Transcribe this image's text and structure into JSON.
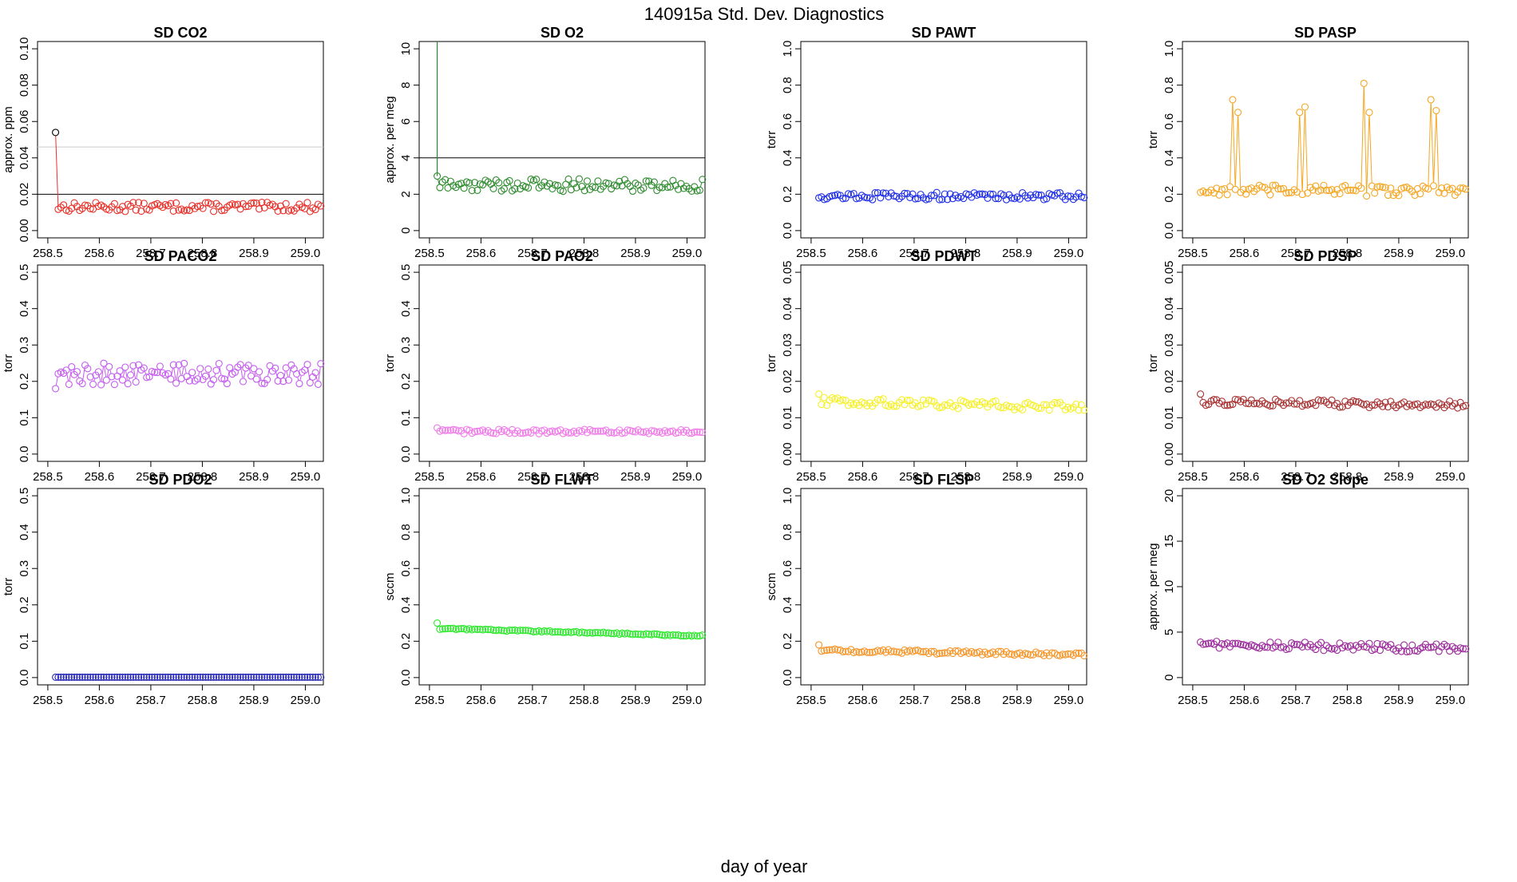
{
  "figure": {
    "title": "140915a   Std. Dev. Diagnostics",
    "xlabel": "day of year"
  },
  "chart_data": [
    {
      "type": "scatter",
      "title": "SD CO2",
      "xlabel": "",
      "ylabel": "approx. ppm",
      "color": "#e8312a",
      "xlim": [
        258.5,
        259.0
      ],
      "xticks": [
        "258.5",
        "258.6",
        "258.7",
        "258.8",
        "258.9",
        "259.0"
      ],
      "ylim": [
        0.0,
        0.1
      ],
      "yticks": [
        "0.00",
        "0.02",
        "0.04",
        "0.06",
        "0.08",
        "0.10"
      ],
      "ref_lines": [
        {
          "y": 0.02,
          "color": "#000000"
        },
        {
          "y": 0.046,
          "color": "#cccccc"
        }
      ],
      "first_point_color": "#000000",
      "series": [
        {
          "base": 0.013,
          "noise": 0.0025,
          "trend": 0.0,
          "first": 0.054
        }
      ]
    },
    {
      "type": "scatter",
      "title": "SD O2",
      "xlabel": "",
      "ylabel": "approx. per meg",
      "color": "#2e8b2e",
      "xlim": [
        258.5,
        259.0
      ],
      "xticks": [
        "258.5",
        "258.6",
        "258.7",
        "258.8",
        "258.9",
        "259.0"
      ],
      "ylim": [
        0,
        10
      ],
      "yticks": [
        "0",
        "2",
        "4",
        "6",
        "8",
        "10"
      ],
      "ref_lines": [
        {
          "y": 4,
          "color": "#000000"
        }
      ],
      "series": [
        {
          "base": 2.5,
          "noise": 0.35,
          "trend": 0.0,
          "first": 3.0,
          "spike_to_top": true
        }
      ]
    },
    {
      "type": "scatter",
      "title": "SD PAWT",
      "xlabel": "",
      "ylabel": "torr",
      "color": "#1f2ee8",
      "xlim": [
        258.5,
        259.0
      ],
      "xticks": [
        "258.5",
        "258.6",
        "258.7",
        "258.8",
        "258.9",
        "259.0"
      ],
      "ylim": [
        0.0,
        1.0
      ],
      "yticks": [
        "0.0",
        "0.2",
        "0.4",
        "0.6",
        "0.8",
        "1.0"
      ],
      "ref_lines": [],
      "series": [
        {
          "base": 0.19,
          "noise": 0.02,
          "trend": 0.0,
          "first": 0.18
        }
      ]
    },
    {
      "type": "scatter",
      "title": "SD PASP",
      "xlabel": "",
      "ylabel": "torr",
      "color": "#f5a623",
      "xlim": [
        258.5,
        259.0
      ],
      "xticks": [
        "258.5",
        "258.6",
        "258.7",
        "258.8",
        "258.9",
        "259.0"
      ],
      "ylim": [
        0.0,
        1.0
      ],
      "yticks": [
        "0.0",
        "0.2",
        "0.4",
        "0.6",
        "0.8",
        "1.0"
      ],
      "ref_lines": [],
      "spikes": [
        [
          258.578,
          0.72
        ],
        [
          258.59,
          0.65
        ],
        [
          258.705,
          0.65
        ],
        [
          258.718,
          0.68
        ],
        [
          258.833,
          0.81
        ],
        [
          258.845,
          0.65
        ],
        [
          258.963,
          0.72
        ],
        [
          258.975,
          0.66
        ]
      ],
      "series": [
        {
          "base": 0.22,
          "noise": 0.03,
          "trend": 0.0,
          "first": 0.21
        }
      ]
    },
    {
      "type": "scatter",
      "title": "SD PACO2",
      "xlabel": "",
      "ylabel": "torr",
      "color": "#c45cf0",
      "xlim": [
        258.5,
        259.0
      ],
      "xticks": [
        "258.5",
        "258.6",
        "258.7",
        "258.8",
        "258.9",
        "259.0"
      ],
      "ylim": [
        0.0,
        0.5
      ],
      "yticks": [
        "0.0",
        "0.1",
        "0.2",
        "0.3",
        "0.4",
        "0.5"
      ],
      "ref_lines": [],
      "series": [
        {
          "base": 0.22,
          "noise": 0.03,
          "trend": 0.0,
          "first": 0.18
        }
      ]
    },
    {
      "type": "scatter",
      "title": "SD PAO2",
      "xlabel": "",
      "ylabel": "torr",
      "color": "#f07ae8",
      "xlim": [
        258.5,
        259.0
      ],
      "xticks": [
        "258.5",
        "258.6",
        "258.7",
        "258.8",
        "258.9",
        "259.0"
      ],
      "ylim": [
        0.0,
        0.5
      ],
      "yticks": [
        "0.0",
        "0.1",
        "0.2",
        "0.3",
        "0.4",
        "0.5"
      ],
      "ref_lines": [],
      "series": [
        {
          "base": 0.062,
          "noise": 0.006,
          "trend": 0.0,
          "first": 0.072
        }
      ]
    },
    {
      "type": "scatter",
      "title": "SD PDWT",
      "xlabel": "",
      "ylabel": "torr",
      "color": "#f5f02a",
      "xlim": [
        258.5,
        259.0
      ],
      "xticks": [
        "258.5",
        "258.6",
        "258.7",
        "258.8",
        "258.9",
        "259.0"
      ],
      "ylim": [
        0.0,
        0.05
      ],
      "yticks": [
        "0.00",
        "0.01",
        "0.02",
        "0.03",
        "0.04",
        "0.05"
      ],
      "ref_lines": [],
      "series": [
        {
          "base": 0.0145,
          "noise": 0.0012,
          "trend": -0.002,
          "first": 0.0165
        }
      ]
    },
    {
      "type": "scatter",
      "title": "SD PDSP",
      "xlabel": "",
      "ylabel": "torr",
      "color": "#a83232",
      "xlim": [
        258.5,
        259.0
      ],
      "xticks": [
        "258.5",
        "258.6",
        "258.7",
        "258.8",
        "258.9",
        "259.0"
      ],
      "ylim": [
        0.0,
        0.05
      ],
      "yticks": [
        "0.00",
        "0.01",
        "0.02",
        "0.03",
        "0.04",
        "0.05"
      ],
      "ref_lines": [],
      "series": [
        {
          "base": 0.0143,
          "noise": 0.001,
          "trend": -0.001,
          "first": 0.0165
        }
      ]
    },
    {
      "type": "scatter",
      "title": "SD PDO2",
      "xlabel": "",
      "ylabel": "torr",
      "color": "#2a2ab8",
      "xlim": [
        258.5,
        259.0
      ],
      "xticks": [
        "258.5",
        "258.6",
        "258.7",
        "258.8",
        "258.9",
        "259.0"
      ],
      "ylim": [
        0.0,
        0.5
      ],
      "yticks": [
        "0.0",
        "0.1",
        "0.2",
        "0.3",
        "0.4",
        "0.5"
      ],
      "ref_lines": [],
      "series": [
        {
          "base": 0.001,
          "noise": 0.0,
          "trend": 0.0,
          "first": 0.001
        }
      ]
    },
    {
      "type": "scatter",
      "title": "SD FLWT",
      "xlabel": "",
      "ylabel": "sccm",
      "color": "#2ae82a",
      "xlim": [
        258.5,
        259.0
      ],
      "xticks": [
        "258.5",
        "258.6",
        "258.7",
        "258.8",
        "258.9",
        "259.0"
      ],
      "ylim": [
        0.0,
        1.0
      ],
      "yticks": [
        "0.0",
        "0.2",
        "0.4",
        "0.6",
        "0.8",
        "1.0"
      ],
      "ref_lines": [],
      "series": [
        {
          "base": 0.27,
          "noise": 0.004,
          "trend": -0.05,
          "first": 0.3
        }
      ]
    },
    {
      "type": "scatter",
      "title": "SD FLSP",
      "xlabel": "",
      "ylabel": "sccm",
      "color": "#f5962a",
      "xlim": [
        258.5,
        259.0
      ],
      "xticks": [
        "258.5",
        "258.6",
        "258.7",
        "258.8",
        "258.9",
        "259.0"
      ],
      "ylim": [
        0.0,
        1.0
      ],
      "yticks": [
        "0.0",
        "0.2",
        "0.4",
        "0.6",
        "0.8",
        "1.0"
      ],
      "ref_lines": [],
      "series": [
        {
          "base": 0.15,
          "noise": 0.01,
          "trend": -0.03,
          "first": 0.18
        }
      ]
    },
    {
      "type": "scatter",
      "title": "SD O2 Slope",
      "xlabel": "",
      "ylabel": "approx. per meg",
      "color": "#9b2a9b",
      "xlim": [
        258.5,
        259.0
      ],
      "xticks": [
        "258.5",
        "258.6",
        "258.7",
        "258.8",
        "258.9",
        "259.0"
      ],
      "ylim": [
        0,
        20
      ],
      "yticks": [
        "0",
        "5",
        "10",
        "15",
        "20"
      ],
      "ref_lines": [],
      "series": [
        {
          "base": 3.6,
          "noise": 0.45,
          "trend": -0.4,
          "first": 3.9
        }
      ]
    }
  ]
}
